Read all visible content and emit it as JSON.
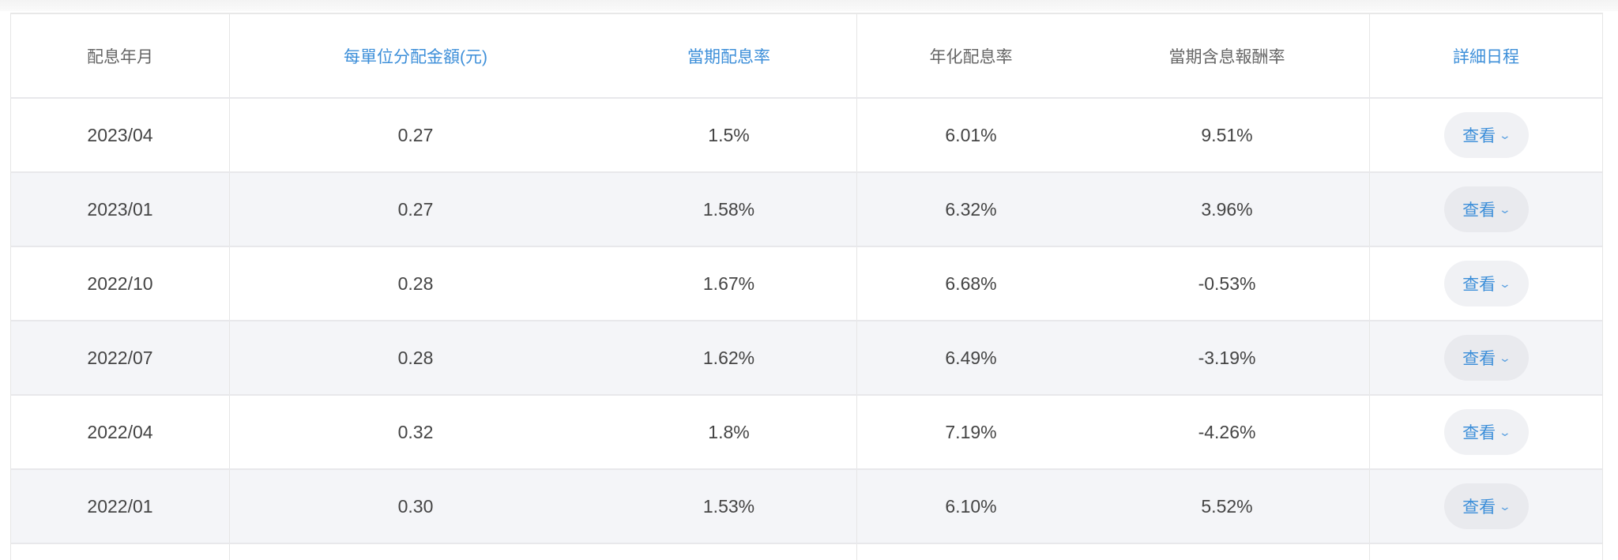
{
  "table": {
    "headers": [
      "配息年月",
      "每單位分配金額(元)",
      "當期配息率",
      "年化配息率",
      "當期含息報酬率",
      "詳細日程"
    ],
    "rows": [
      {
        "month": "2023/04",
        "amount": "0.27",
        "period_rate": "1.5%",
        "annual_rate": "6.01%",
        "total_return": "9.51%",
        "action": "查看"
      },
      {
        "month": "2023/01",
        "amount": "0.27",
        "period_rate": "1.58%",
        "annual_rate": "6.32%",
        "total_return": "3.96%",
        "action": "查看"
      },
      {
        "month": "2022/10",
        "amount": "0.28",
        "period_rate": "1.67%",
        "annual_rate": "6.68%",
        "total_return": "-0.53%",
        "action": "查看"
      },
      {
        "month": "2022/07",
        "amount": "0.28",
        "period_rate": "1.62%",
        "annual_rate": "6.49%",
        "total_return": "-3.19%",
        "action": "查看"
      },
      {
        "month": "2022/04",
        "amount": "0.32",
        "period_rate": "1.8%",
        "annual_rate": "7.19%",
        "total_return": "-4.26%",
        "action": "查看"
      },
      {
        "month": "2022/01",
        "amount": "0.30",
        "period_rate": "1.53%",
        "annual_rate": "6.10%",
        "total_return": "5.52%",
        "action": "查看"
      }
    ]
  },
  "colors": {
    "accent": "#3d8fd9",
    "alt_row": "#f4f5f8"
  },
  "icons": {
    "expand": "chevron-down-icon"
  }
}
